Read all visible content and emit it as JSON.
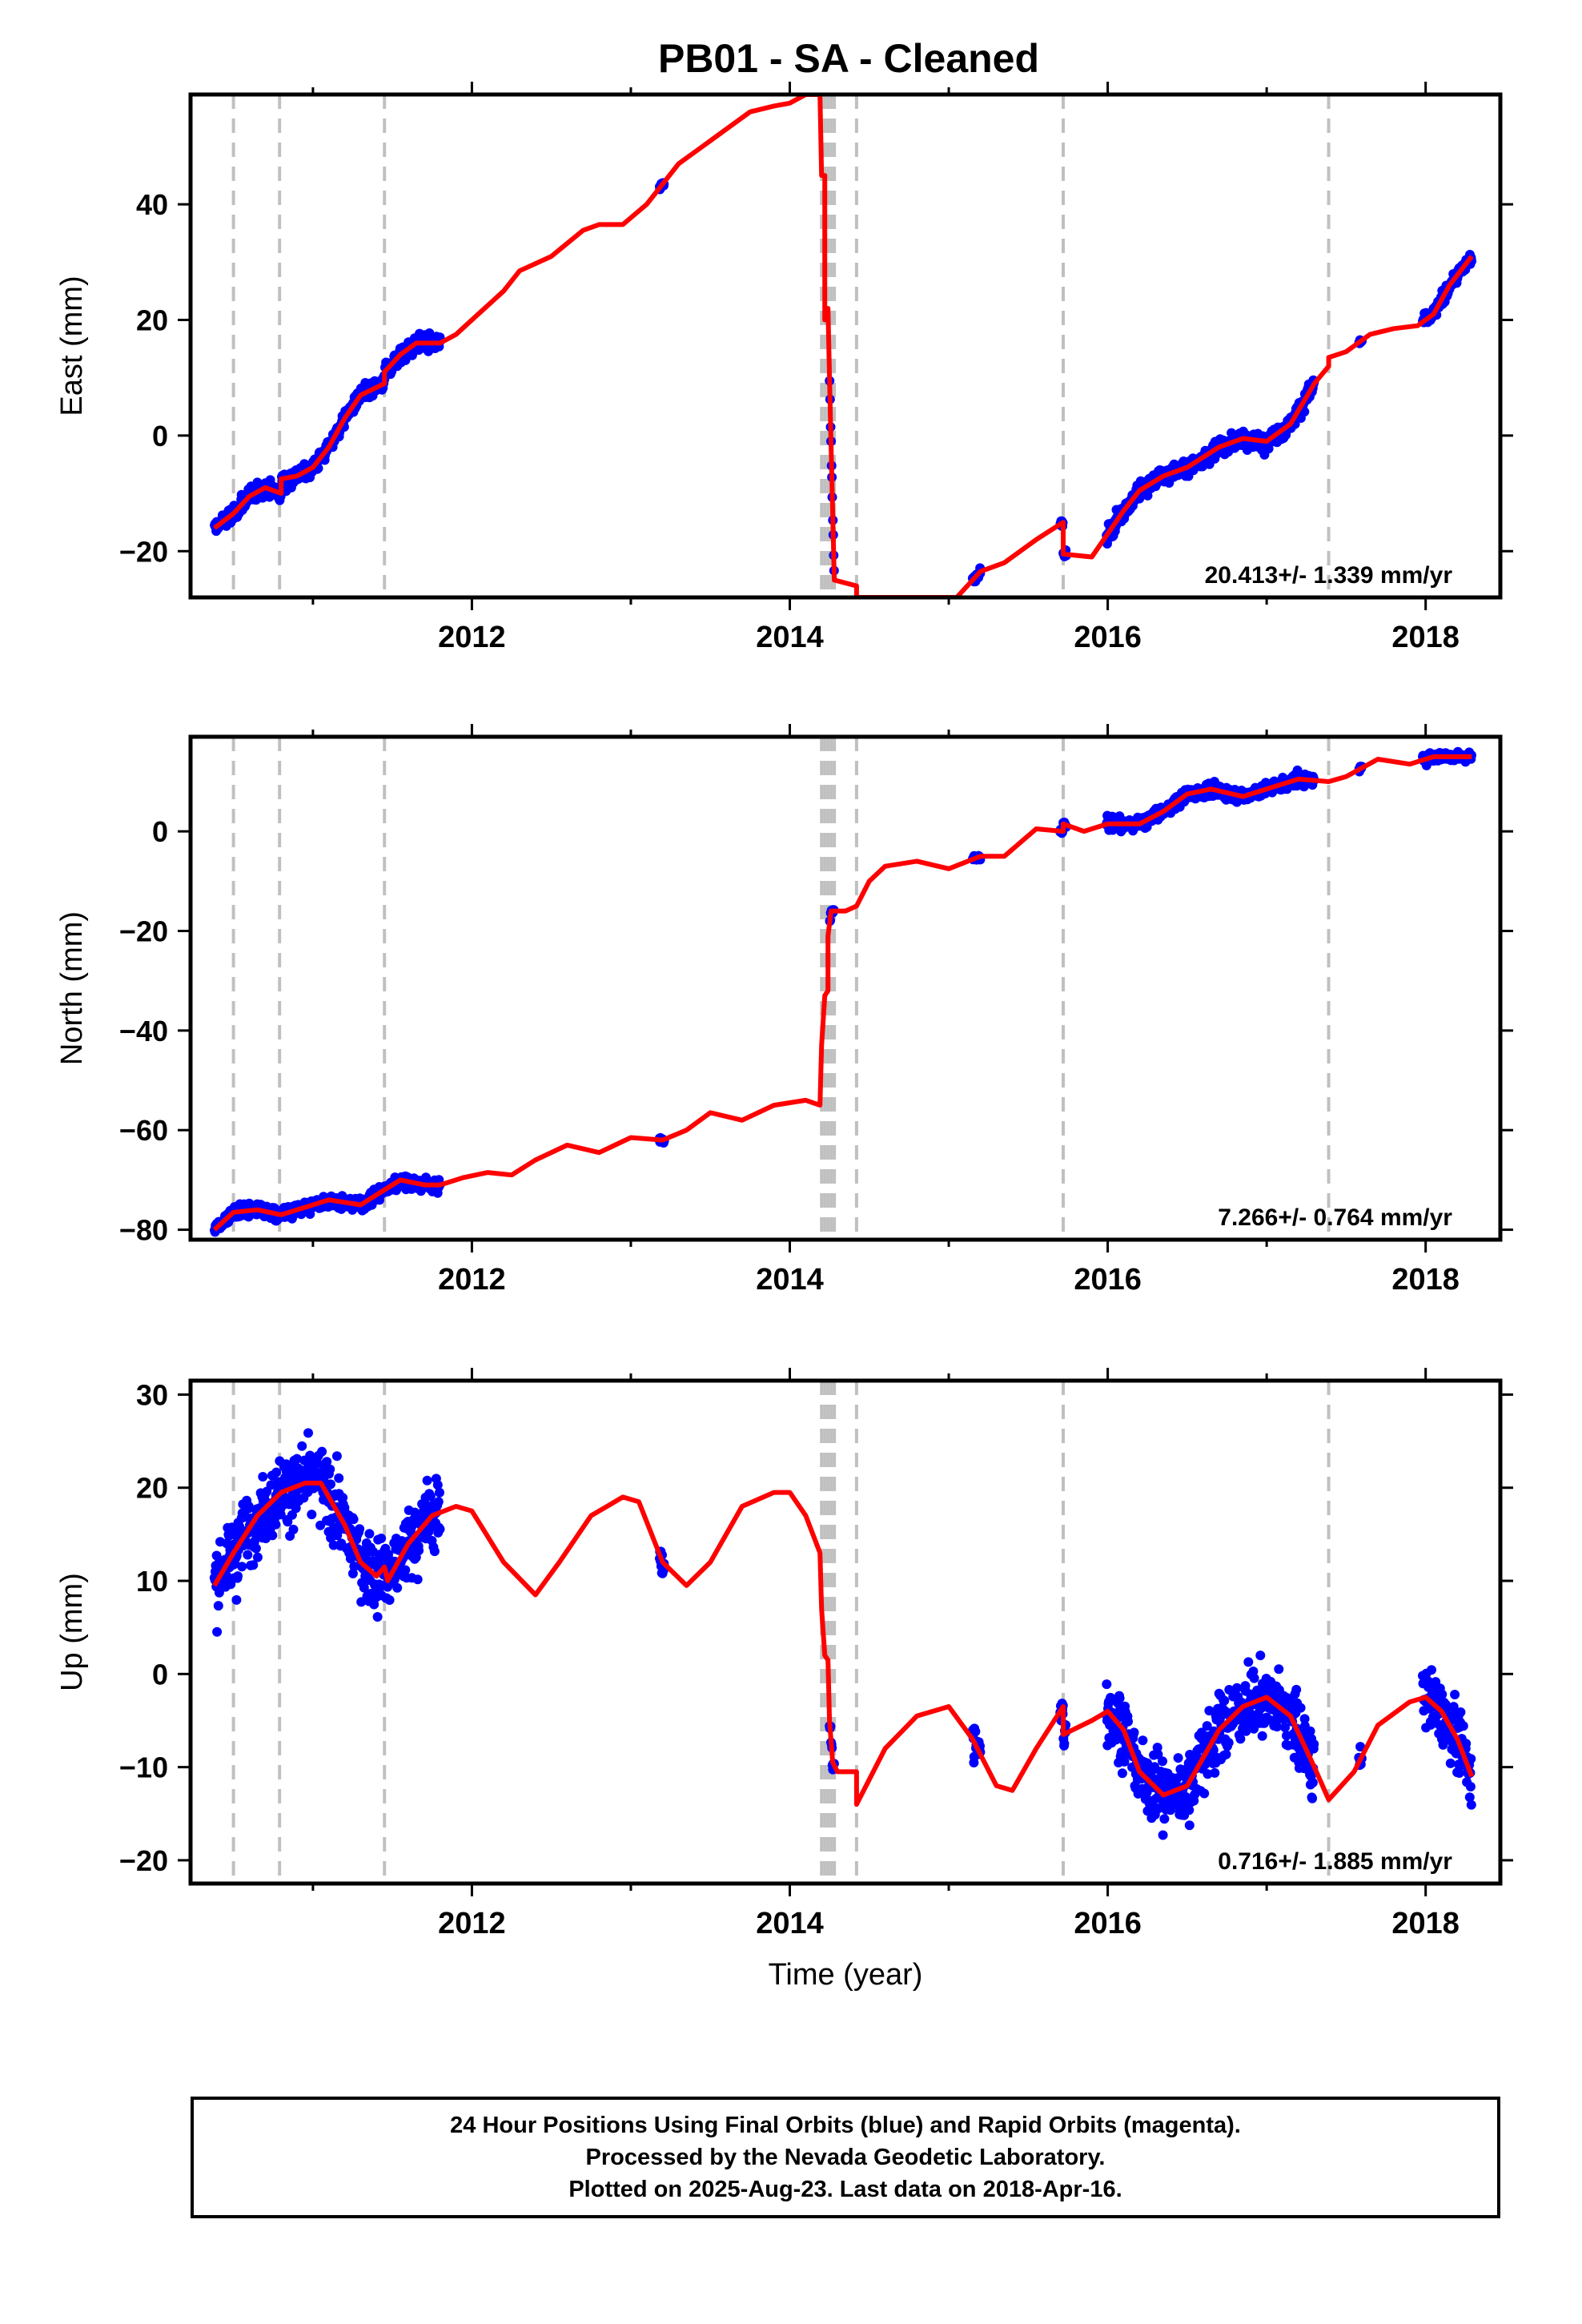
{
  "title": "PB01  - SA - Cleaned",
  "colors": {
    "data": "#0000ff",
    "model": "#ff0000",
    "breaks": "#c0c0c0",
    "frame": "#000000"
  },
  "footer": {
    "line1": "24 Hour Positions Using Final Orbits (blue) and Rapid Orbits (magenta).",
    "line2": "Processed by the Nevada Geodetic Laboratory.",
    "line3": "Plotted on 2025-Aug-23. Last data on 2018-Apr-16."
  },
  "chart_data": [
    {
      "type": "scatter",
      "name": "east",
      "ylabel": "East (mm)",
      "xlabel": "",
      "xlim": [
        2010.23,
        2018.47
      ],
      "ylim": [
        -28,
        59
      ],
      "xticks": [
        2012,
        2014,
        2016,
        2018
      ],
      "yticks": [
        -20,
        0,
        20,
        40
      ],
      "annotation": "20.413+/- 1.339 mm/yr",
      "breaks": [
        2010.5,
        2010.79,
        2011.45,
        2014.2,
        2014.22,
        2014.24,
        2014.26,
        2014.28,
        2014.42,
        2015.72,
        2017.39
      ],
      "data_segments": [
        {
          "t0": 2010.38,
          "t1": 2011.8,
          "scatter": 1.5
        },
        {
          "t0": 2013.18,
          "t1": 2013.21,
          "scatter": 0.6
        },
        {
          "t0": 2014.25,
          "t1": 2014.28,
          "scatter": 0.8
        },
        {
          "t0": 2015.15,
          "t1": 2015.2,
          "scatter": 0.6
        },
        {
          "t0": 2015.7,
          "t1": 2015.74,
          "scatter": 0.6
        },
        {
          "t0": 2015.99,
          "t1": 2017.3,
          "scatter": 1.5
        },
        {
          "t0": 2017.58,
          "t1": 2017.6,
          "scatter": 0.5
        },
        {
          "t0": 2017.98,
          "t1": 2018.29,
          "scatter": 1.1
        }
      ],
      "model": [
        [
          2010.38,
          -16
        ],
        [
          2010.5,
          -13.5
        ],
        [
          2010.6,
          -10.5
        ],
        [
          2010.7,
          -9
        ],
        [
          2010.8,
          -10
        ],
        [
          2010.8,
          -7.5
        ],
        [
          2010.9,
          -7
        ],
        [
          2011.0,
          -5.5
        ],
        [
          2011.1,
          -2
        ],
        [
          2011.2,
          3
        ],
        [
          2011.3,
          7
        ],
        [
          2011.45,
          9
        ],
        [
          2011.45,
          11
        ],
        [
          2011.55,
          14
        ],
        [
          2011.65,
          16
        ],
        [
          2011.8,
          16
        ],
        [
          2011.9,
          17.5
        ],
        [
          2012.0,
          20
        ],
        [
          2012.2,
          25
        ],
        [
          2012.3,
          28.5
        ],
        [
          2012.5,
          31
        ],
        [
          2012.7,
          35.5
        ],
        [
          2012.8,
          36.5
        ],
        [
          2012.95,
          36.5
        ],
        [
          2013.1,
          40
        ],
        [
          2013.3,
          47
        ],
        [
          2013.45,
          50
        ],
        [
          2013.6,
          53
        ],
        [
          2013.75,
          56
        ],
        [
          2013.9,
          57
        ],
        [
          2014.0,
          57.5
        ],
        [
          2014.1,
          59
        ],
        [
          2014.19,
          59
        ],
        [
          2014.2,
          45
        ],
        [
          2014.22,
          45
        ],
        [
          2014.22,
          20
        ],
        [
          2014.24,
          22
        ],
        [
          2014.25,
          10
        ],
        [
          2014.26,
          -2
        ],
        [
          2014.28,
          -25
        ],
        [
          2014.42,
          -26
        ],
        [
          2014.42,
          -28
        ],
        [
          2014.44,
          -28
        ],
        [
          2015.05,
          -28
        ],
        [
          2015.2,
          -23.5
        ],
        [
          2015.35,
          -22
        ],
        [
          2015.55,
          -18
        ],
        [
          2015.72,
          -15
        ],
        [
          2015.72,
          -20.5
        ],
        [
          2015.9,
          -21
        ],
        [
          2016.0,
          -17
        ],
        [
          2016.1,
          -13
        ],
        [
          2016.2,
          -9.5
        ],
        [
          2016.35,
          -7
        ],
        [
          2016.5,
          -5.5
        ],
        [
          2016.7,
          -2
        ],
        [
          2016.85,
          -0.5
        ],
        [
          2017.0,
          -1
        ],
        [
          2017.15,
          2
        ],
        [
          2017.3,
          9
        ],
        [
          2017.39,
          12
        ],
        [
          2017.39,
          13.5
        ],
        [
          2017.5,
          14.5
        ],
        [
          2017.65,
          17.5
        ],
        [
          2017.8,
          18.5
        ],
        [
          2017.95,
          19
        ],
        [
          2018.05,
          21
        ],
        [
          2018.15,
          26
        ],
        [
          2018.29,
          31
        ]
      ]
    },
    {
      "type": "scatter",
      "name": "north",
      "ylabel": "North (mm)",
      "xlabel": "",
      "xlim": [
        2010.23,
        2018.47
      ],
      "ylim": [
        -82,
        19
      ],
      "xticks": [
        2012,
        2014,
        2016,
        2018
      ],
      "yticks": [
        -80,
        -60,
        -40,
        -20,
        0
      ],
      "annotation": "7.266+/- 0.764 mm/yr",
      "breaks": [
        2010.5,
        2010.79,
        2011.45,
        2014.2,
        2014.22,
        2014.24,
        2014.26,
        2014.28,
        2014.42,
        2015.72,
        2017.39
      ],
      "data_segments": [
        {
          "t0": 2010.38,
          "t1": 2011.8,
          "scatter": 1.3
        },
        {
          "t0": 2013.18,
          "t1": 2013.21,
          "scatter": 0.6
        },
        {
          "t0": 2014.25,
          "t1": 2014.28,
          "scatter": 0.6
        },
        {
          "t0": 2015.15,
          "t1": 2015.2,
          "scatter": 0.6
        },
        {
          "t0": 2015.7,
          "t1": 2015.74,
          "scatter": 0.6
        },
        {
          "t0": 2015.99,
          "t1": 2017.3,
          "scatter": 1.3
        },
        {
          "t0": 2017.58,
          "t1": 2017.6,
          "scatter": 0.5
        },
        {
          "t0": 2017.98,
          "t1": 2018.29,
          "scatter": 1.0
        }
      ],
      "model": [
        [
          2010.38,
          -80
        ],
        [
          2010.5,
          -76.5
        ],
        [
          2010.65,
          -76
        ],
        [
          2010.8,
          -77
        ],
        [
          2010.95,
          -75.5
        ],
        [
          2011.1,
          -74
        ],
        [
          2011.3,
          -75
        ],
        [
          2011.45,
          -72
        ],
        [
          2011.55,
          -70
        ],
        [
          2011.7,
          -71
        ],
        [
          2011.8,
          -71
        ],
        [
          2011.95,
          -69.5
        ],
        [
          2012.1,
          -68.5
        ],
        [
          2012.25,
          -69
        ],
        [
          2012.4,
          -66
        ],
        [
          2012.6,
          -63
        ],
        [
          2012.8,
          -64.5
        ],
        [
          2013.0,
          -61.5
        ],
        [
          2013.2,
          -62
        ],
        [
          2013.35,
          -60
        ],
        [
          2013.5,
          -56.5
        ],
        [
          2013.7,
          -58
        ],
        [
          2013.9,
          -55
        ],
        [
          2014.1,
          -54
        ],
        [
          2014.19,
          -55
        ],
        [
          2014.2,
          -43
        ],
        [
          2014.22,
          -33
        ],
        [
          2014.24,
          -32
        ],
        [
          2014.24,
          -21
        ],
        [
          2014.26,
          -16
        ],
        [
          2014.35,
          -16
        ],
        [
          2014.42,
          -15
        ],
        [
          2014.5,
          -10
        ],
        [
          2014.6,
          -7
        ],
        [
          2014.8,
          -6
        ],
        [
          2015.0,
          -7.5
        ],
        [
          2015.2,
          -5
        ],
        [
          2015.35,
          -5
        ],
        [
          2015.55,
          0.5
        ],
        [
          2015.72,
          0
        ],
        [
          2015.72,
          1.5
        ],
        [
          2015.85,
          0
        ],
        [
          2016.0,
          1.5
        ],
        [
          2016.2,
          1.5
        ],
        [
          2016.35,
          4
        ],
        [
          2016.5,
          7.5
        ],
        [
          2016.65,
          8.5
        ],
        [
          2016.85,
          7
        ],
        [
          2017.0,
          8.5
        ],
        [
          2017.2,
          10.5
        ],
        [
          2017.39,
          10
        ],
        [
          2017.5,
          11
        ],
        [
          2017.7,
          14.5
        ],
        [
          2017.9,
          13.5
        ],
        [
          2018.05,
          15
        ],
        [
          2018.29,
          15
        ]
      ]
    },
    {
      "type": "scatter",
      "name": "up",
      "ylabel": "Up (mm)",
      "xlabel": "Time (year)",
      "xlim": [
        2010.23,
        2018.47
      ],
      "ylim": [
        -22.5,
        31.5
      ],
      "xticks": [
        2012,
        2014,
        2016,
        2018
      ],
      "yticks": [
        -20,
        -10,
        0,
        10,
        20,
        30
      ],
      "annotation": "0.716+/- 1.885 mm/yr",
      "breaks": [
        2010.5,
        2010.79,
        2011.45,
        2014.2,
        2014.22,
        2014.24,
        2014.26,
        2014.28,
        2014.42,
        2015.72,
        2017.39
      ],
      "data_segments": [
        {
          "t0": 2010.38,
          "t1": 2011.8,
          "scatter": 3.8
        },
        {
          "t0": 2013.18,
          "t1": 2013.21,
          "scatter": 2.2
        },
        {
          "t0": 2014.25,
          "t1": 2014.28,
          "scatter": 1.5
        },
        {
          "t0": 2015.15,
          "t1": 2015.2,
          "scatter": 2.0
        },
        {
          "t0": 2015.7,
          "t1": 2015.74,
          "scatter": 1.8
        },
        {
          "t0": 2015.99,
          "t1": 2017.3,
          "scatter": 3.6
        },
        {
          "t0": 2017.58,
          "t1": 2017.6,
          "scatter": 1.5
        },
        {
          "t0": 2017.98,
          "t1": 2018.29,
          "scatter": 3.0
        }
      ],
      "model": [
        [
          2010.38,
          9.5
        ],
        [
          2010.5,
          13
        ],
        [
          2010.65,
          17
        ],
        [
          2010.8,
          19.5
        ],
        [
          2010.95,
          20.5
        ],
        [
          2011.05,
          20.5
        ],
        [
          2011.2,
          16
        ],
        [
          2011.3,
          12
        ],
        [
          2011.4,
          10.5
        ],
        [
          2011.45,
          11.5
        ],
        [
          2011.47,
          10
        ],
        [
          2011.6,
          14
        ],
        [
          2011.75,
          17
        ],
        [
          2011.9,
          18
        ],
        [
          2012.0,
          17.5
        ],
        [
          2012.2,
          12
        ],
        [
          2012.4,
          8.5
        ],
        [
          2012.55,
          12
        ],
        [
          2012.75,
          17
        ],
        [
          2012.95,
          19
        ],
        [
          2013.05,
          18.5
        ],
        [
          2013.2,
          12
        ],
        [
          2013.35,
          9.5
        ],
        [
          2013.5,
          12
        ],
        [
          2013.7,
          18
        ],
        [
          2013.9,
          19.5
        ],
        [
          2014.0,
          19.5
        ],
        [
          2014.1,
          17
        ],
        [
          2014.19,
          13
        ],
        [
          2014.2,
          7
        ],
        [
          2014.22,
          2
        ],
        [
          2014.24,
          1.5
        ],
        [
          2014.25,
          -5
        ],
        [
          2014.27,
          -9.5
        ],
        [
          2014.3,
          -10.5
        ],
        [
          2014.42,
          -10.5
        ],
        [
          2014.42,
          -14
        ],
        [
          2014.6,
          -8
        ],
        [
          2014.8,
          -4.5
        ],
        [
          2015.0,
          -3.5
        ],
        [
          2015.15,
          -7
        ],
        [
          2015.3,
          -12
        ],
        [
          2015.4,
          -12.5
        ],
        [
          2015.55,
          -8
        ],
        [
          2015.72,
          -3.5
        ],
        [
          2015.72,
          -6.5
        ],
        [
          2015.9,
          -5
        ],
        [
          2016.0,
          -4
        ],
        [
          2016.1,
          -6
        ],
        [
          2016.2,
          -10.5
        ],
        [
          2016.35,
          -13
        ],
        [
          2016.5,
          -12
        ],
        [
          2016.7,
          -6
        ],
        [
          2016.85,
          -3.5
        ],
        [
          2017.0,
          -2.5
        ],
        [
          2017.15,
          -4.5
        ],
        [
          2017.3,
          -10
        ],
        [
          2017.39,
          -13.5
        ],
        [
          2017.55,
          -10.5
        ],
        [
          2017.7,
          -5.5
        ],
        [
          2017.9,
          -3
        ],
        [
          2018.0,
          -2.5
        ],
        [
          2018.1,
          -4
        ],
        [
          2018.2,
          -7
        ],
        [
          2018.29,
          -11
        ]
      ]
    }
  ]
}
